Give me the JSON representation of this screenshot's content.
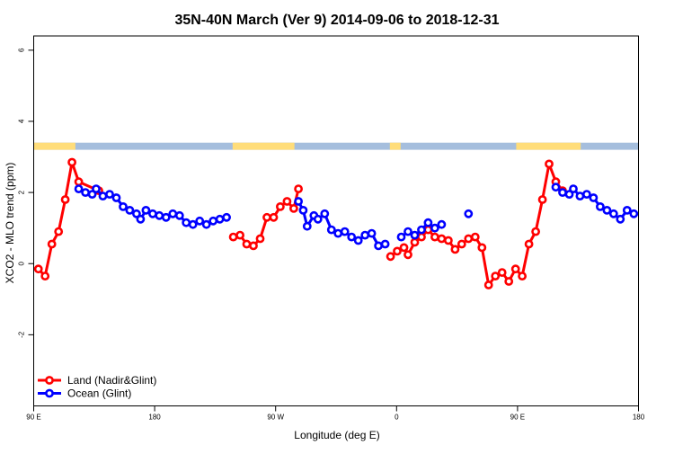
{
  "chart_data": {
    "type": "line",
    "title": "35N-40N March (Ver 9)   2014-09-06 to 2018-12-31",
    "xlabel": "Longitude (deg E)",
    "ylabel": "XCO2 - MLO trend (ppm)",
    "xlim": [
      90,
      540
    ],
    "ylim": [
      -4,
      6.4
    ],
    "x_ticks": [
      {
        "value": 90,
        "label": "90 E"
      },
      {
        "value": 180,
        "label": "180"
      },
      {
        "value": 270,
        "label": "90 W"
      },
      {
        "value": 360,
        "label": "0"
      },
      {
        "value": 450,
        "label": "90 E"
      },
      {
        "value": 540,
        "label": "180"
      }
    ],
    "y_ticks": [
      {
        "value": -2,
        "label": "-2"
      },
      {
        "value": 0,
        "label": "0"
      },
      {
        "value": 2,
        "label": "2"
      },
      {
        "value": 4,
        "label": "4"
      },
      {
        "value": 6,
        "label": "6"
      }
    ],
    "legend_position": "bottom-left",
    "grid": false,
    "colors": {
      "land": "#ff0000",
      "ocean": "#0000ff",
      "land_band": "#ffdd7a",
      "ocean_band": "#a5bedd"
    },
    "surface_band": {
      "y_range": [
        3.2,
        3.4
      ],
      "land_segments": [
        [
          90,
          121
        ],
        [
          238,
          284
        ],
        [
          355,
          363
        ],
        [
          449,
          497
        ]
      ]
    },
    "series": [
      {
        "name": "Land (Nadir&Glint)",
        "color": "#ff0000",
        "segments": [
          [
            [
              93.5,
              -0.15
            ],
            [
              98.5,
              -0.35
            ],
            [
              103.5,
              0.55
            ],
            [
              108.5,
              0.9
            ],
            [
              113.5,
              1.8
            ],
            [
              118.5,
              2.85
            ],
            [
              123.5,
              2.3
            ],
            [
              138.5,
              2.05
            ]
          ],
          [
            [
              238.5,
              0.75
            ],
            [
              243.5,
              0.8
            ],
            [
              248.5,
              0.55
            ],
            [
              253.5,
              0.5
            ],
            [
              258.5,
              0.7
            ],
            [
              263.5,
              1.3
            ],
            [
              268.5,
              1.3
            ],
            [
              273.5,
              1.6
            ],
            [
              278.5,
              1.75
            ],
            [
              283.5,
              1.55
            ],
            [
              287,
              2.1
            ]
          ],
          [
            [
              355.5,
              0.2
            ],
            [
              360.5,
              0.35
            ],
            [
              365.5,
              0.45
            ],
            [
              368.5,
              0.25
            ],
            [
              373.5,
              0.6
            ],
            [
              378.5,
              0.75
            ],
            [
              383.5,
              0.95
            ],
            [
              388.5,
              0.75
            ],
            [
              393.5,
              0.7
            ],
            [
              398.5,
              0.65
            ],
            [
              403.5,
              0.4
            ],
            [
              408.5,
              0.55
            ],
            [
              413.5,
              0.7
            ],
            [
              418.5,
              0.75
            ],
            [
              423.5,
              0.45
            ],
            [
              428.5,
              -0.6
            ],
            [
              433.5,
              -0.35
            ],
            [
              438.5,
              -0.25
            ],
            [
              443.5,
              -0.5
            ],
            [
              448.5,
              -0.15
            ],
            [
              453.5,
              -0.35
            ],
            [
              458.5,
              0.55
            ],
            [
              463.5,
              0.9
            ],
            [
              468.5,
              1.8
            ],
            [
              473.5,
              2.8
            ],
            [
              478.5,
              2.3
            ],
            [
              483.5,
              2.05
            ]
          ]
        ]
      },
      {
        "name": "Ocean (Glint)",
        "color": "#0000ff",
        "segments": [
          [
            [
              123.5,
              2.1
            ],
            [
              128.5,
              2.0
            ],
            [
              133.5,
              1.95
            ],
            [
              136.5,
              2.1
            ],
            [
              141.5,
              1.9
            ],
            [
              146.5,
              1.95
            ],
            [
              151.5,
              1.85
            ],
            [
              156.5,
              1.6
            ],
            [
              161.5,
              1.5
            ],
            [
              166.5,
              1.4
            ],
            [
              169.5,
              1.25
            ],
            [
              173.5,
              1.5
            ],
            [
              178.5,
              1.4
            ],
            [
              183.5,
              1.35
            ],
            [
              188.5,
              1.3
            ],
            [
              193.5,
              1.4
            ],
            [
              198.5,
              1.35
            ],
            [
              203.5,
              1.15
            ],
            [
              208.5,
              1.1
            ],
            [
              213.5,
              1.2
            ],
            [
              218.5,
              1.1
            ],
            [
              223.5,
              1.2
            ],
            [
              228.5,
              1.25
            ],
            [
              233.5,
              1.3
            ]
          ],
          [
            [
              287,
              1.75
            ],
            [
              290.5,
              1.5
            ],
            [
              293.5,
              1.05
            ],
            [
              298.5,
              1.35
            ],
            [
              301.5,
              1.25
            ],
            [
              306.5,
              1.4
            ],
            [
              311.5,
              0.95
            ],
            [
              316.5,
              0.85
            ],
            [
              321.5,
              0.9
            ],
            [
              326.5,
              0.75
            ],
            [
              331.5,
              0.65
            ],
            [
              336.5,
              0.8
            ],
            [
              341.5,
              0.85
            ],
            [
              346.5,
              0.5
            ],
            [
              351.5,
              0.55
            ]
          ],
          [
            [
              363.5,
              0.75
            ],
            [
              368.5,
              0.9
            ],
            [
              373.5,
              0.8
            ],
            [
              378.5,
              0.95
            ],
            [
              383.5,
              1.15
            ],
            [
              388.5,
              1.0
            ],
            [
              393.5,
              1.1
            ]
          ],
          [
            [
              413.5,
              1.4
            ]
          ],
          [
            [
              478.5,
              2.15
            ],
            [
              483.5,
              2.0
            ],
            [
              488.5,
              1.95
            ],
            [
              491.5,
              2.1
            ],
            [
              496.5,
              1.9
            ],
            [
              501.5,
              1.95
            ],
            [
              506.5,
              1.85
            ],
            [
              511.5,
              1.6
            ],
            [
              516.5,
              1.5
            ],
            [
              521.5,
              1.4
            ],
            [
              526.5,
              1.25
            ],
            [
              531.5,
              1.5
            ],
            [
              536.5,
              1.4
            ]
          ]
        ]
      }
    ]
  }
}
